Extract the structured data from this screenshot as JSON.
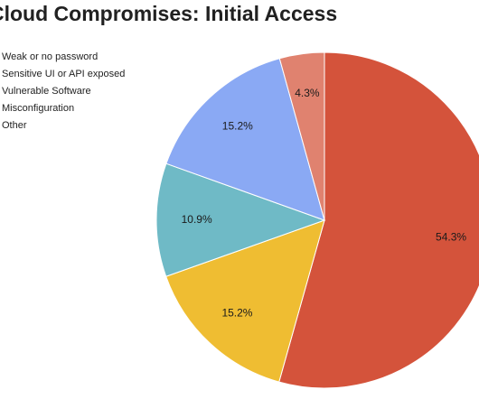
{
  "chart_data": {
    "type": "pie",
    "title": "Cloud Compromises: Initial Access",
    "legend_position": "left",
    "slices": [
      {
        "label": "Weak or no password",
        "value": 54.3,
        "value_label": "54.3%",
        "color": "#d4533b"
      },
      {
        "label": "Sensitive UI or API exposed",
        "value": 15.2,
        "value_label": "15.2%",
        "color": "#efbd32"
      },
      {
        "label": "Vulnerable Software",
        "value": 10.9,
        "value_label": "10.9%",
        "color": "#6fbac6"
      },
      {
        "label": "Misconfiguration",
        "value": 15.2,
        "value_label": "15.2%",
        "color": "#8aa9f4"
      },
      {
        "label": "Other",
        "value": 4.3,
        "value_label": "4.3%",
        "color": "#e0826f"
      }
    ]
  }
}
